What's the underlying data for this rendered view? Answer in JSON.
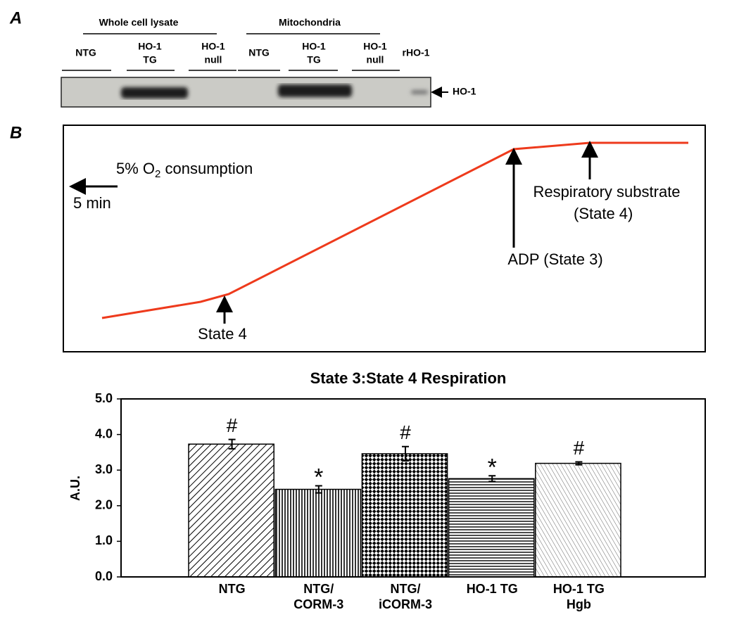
{
  "panel_a": {
    "label": "A",
    "groups": [
      "Whole cell lysate",
      "Mitochondria"
    ],
    "lanes": [
      [
        "NTG"
      ],
      [
        "HO-1",
        "TG"
      ],
      [
        "HO-1",
        "null"
      ],
      [
        "NTG"
      ],
      [
        "HO-1",
        "TG"
      ],
      [
        "HO-1",
        "null"
      ],
      [
        "rHO-1"
      ]
    ],
    "band_label": "HO-1"
  },
  "panel_b": {
    "label": "B",
    "scale_o2": {
      "before": "5% O",
      "sub": "2",
      "after": " consumption"
    },
    "scale_time": "5 min",
    "arrows": [
      "State 4",
      "ADP (State 3)",
      [
        "Respiratory substrate",
        "(State 4)"
      ]
    ]
  },
  "chart_data": {
    "type": "bar",
    "title": "State 3:State 4 Respiration",
    "y_label": "A.U.",
    "categories": [
      [
        "NTG"
      ],
      [
        "NTG/",
        "CORM-3"
      ],
      [
        "NTG/",
        "iCORM-3"
      ],
      [
        "HO-1 TG"
      ],
      [
        "HO-1 TG",
        "Hgb"
      ]
    ],
    "values": [
      3.73,
      2.46,
      3.46,
      2.76,
      3.19
    ],
    "errors": [
      0.13,
      0.1,
      0.2,
      0.08,
      0.04
    ],
    "annotations": [
      "#",
      "*",
      "#",
      "*",
      "#"
    ],
    "patterns": [
      "diag-right",
      "vertical",
      "checker",
      "horizontal",
      "diag-left"
    ],
    "ylim": [
      0,
      5
    ],
    "yticks": [
      {
        "value": 0,
        "label": "0.0"
      },
      {
        "value": 1,
        "label": "1.0"
      },
      {
        "value": 2,
        "label": "2.0"
      },
      {
        "value": 3,
        "label": "3.0"
      },
      {
        "value": 4,
        "label": "4.0"
      },
      {
        "value": 5,
        "label": "5.0"
      }
    ]
  }
}
